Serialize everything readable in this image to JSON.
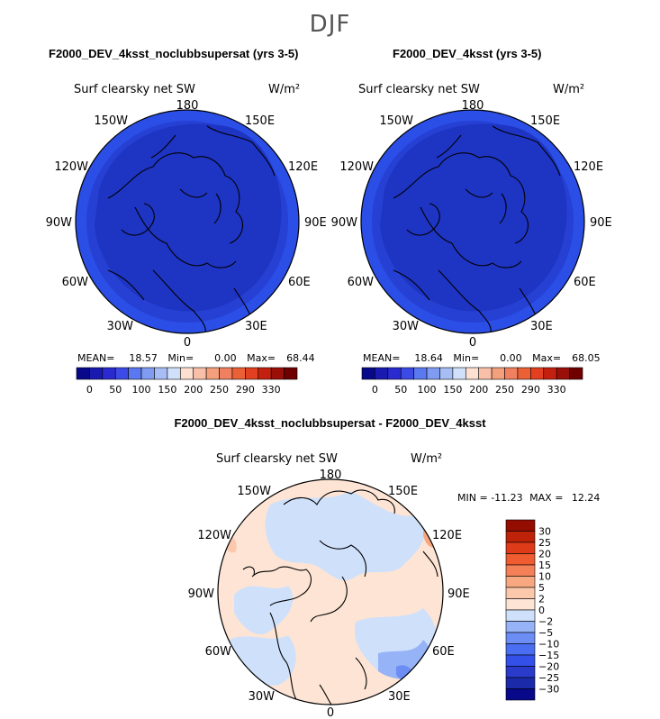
{
  "figure": {
    "season": "DJF"
  },
  "panels": [
    {
      "title": "F2000_DEV_4ksst_noclubbsupersat (yrs 3-5)",
      "variable": "Surf clearsky net SW",
      "units": "W/m²",
      "stats": {
        "mean_label": "MEAN=",
        "mean": "18.57",
        "min_label": "Min=",
        "min": "0.00",
        "max_label": "Max=",
        "max": "68.44"
      },
      "longitude_labels": {
        "top": "180",
        "bottom": "0",
        "left": [
          "150W",
          "120W",
          "90W",
          "60W",
          "30W"
        ],
        "right": [
          "150E",
          "120E",
          "90E",
          "60E",
          "30E"
        ]
      }
    },
    {
      "title": "F2000_DEV_4ksst (yrs 3-5)",
      "variable": "Surf clearsky net SW",
      "units": "W/m²",
      "stats": {
        "mean_label": "MEAN=",
        "mean": "18.64",
        "min_label": "Min=",
        "min": "0.00",
        "max_label": "Max=",
        "max": "68.05"
      },
      "longitude_labels": {
        "top": "180",
        "bottom": "0",
        "left": [
          "150W",
          "120W",
          "90W",
          "60W",
          "30W"
        ],
        "right": [
          "150E",
          "120E",
          "90E",
          "60E",
          "30E"
        ]
      }
    },
    {
      "title": "F2000_DEV_4ksst_noclubbsupersat - F2000_DEV_4ksst",
      "variable": "Surf clearsky net SW",
      "units": "W/m²",
      "stats": {
        "min_label": "MIN =",
        "min": "-11.23",
        "max_label": "MAX =",
        "max": "12.24"
      },
      "longitude_labels": {
        "top": "180",
        "bottom": "0",
        "left": [
          "150W",
          "120W",
          "90W",
          "60W",
          "30W"
        ],
        "right": [
          "150E",
          "120E",
          "90E",
          "60E",
          "30E"
        ]
      }
    }
  ],
  "colorbar_abs": {
    "colors": [
      "#08088a",
      "#1a1ab0",
      "#2a2ad0",
      "#3d4be6",
      "#5a78f0",
      "#7f9cf2",
      "#a6bdf5",
      "#d0e0fa",
      "#fde0d0",
      "#f8c0a8",
      "#f4a07c",
      "#f08060",
      "#ec6035",
      "#e24020",
      "#c42010",
      "#9a1008",
      "#700000"
    ],
    "tick_labels": [
      "0",
      "50",
      "100",
      "150",
      "200",
      "250",
      "290",
      "330"
    ],
    "tick_boundaries": [
      1,
      3,
      5,
      7,
      9,
      11,
      13,
      15
    ]
  },
  "colorbar_diff": {
    "colors": [
      "#08088a",
      "#1a2aa8",
      "#2a3bcc",
      "#3350e8",
      "#4a6ef2",
      "#6b8df4",
      "#95b3f6",
      "#cfe0fb",
      "#fde4d4",
      "#fbc8ac",
      "#f8a880",
      "#f48058",
      "#ee5c30",
      "#de3c18",
      "#be2208",
      "#950c00"
    ],
    "tick_labels": [
      "−30",
      "−25",
      "−20",
      "−15",
      "−10",
      "−5",
      "−2",
      "0",
      "2",
      "5",
      "10",
      "15",
      "20",
      "25",
      "30"
    ]
  }
}
